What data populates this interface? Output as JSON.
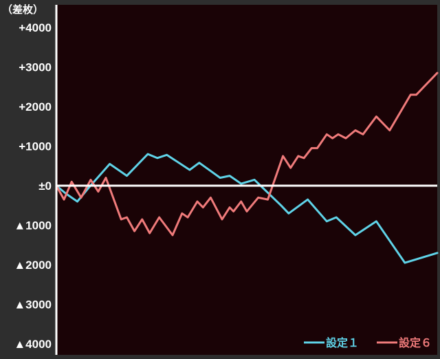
{
  "chart_data": {
    "type": "line",
    "title": "",
    "unit_label": "（差枚）",
    "xlabel": "",
    "ylabel": "",
    "ylim": [
      -4000,
      4000
    ],
    "yticks": [
      {
        "value": 4000,
        "label": "+4000"
      },
      {
        "value": 3000,
        "label": "+3000"
      },
      {
        "value": 2000,
        "label": "+2000"
      },
      {
        "value": 1000,
        "label": "+1000"
      },
      {
        "value": 0,
        "label": "±0"
      },
      {
        "value": -1000,
        "label": "▲1000"
      },
      {
        "value": -2000,
        "label": "▲2000"
      },
      {
        "value": -3000,
        "label": "▲3000"
      },
      {
        "value": -4000,
        "label": "▲4000"
      }
    ],
    "xlim": [
      0,
      100
    ],
    "grid": false,
    "legend_position": "bottom-right",
    "colors": {
      "background": "#1a0306",
      "frame": "#2e2e2e",
      "axis": "#ffffff",
      "zero_line": "#ffffff"
    },
    "series": [
      {
        "name": "設定１",
        "color": "#5fd3e8",
        "points": [
          [
            0,
            0
          ],
          [
            2.5,
            -200
          ],
          [
            5.5,
            -400
          ],
          [
            8.5,
            -50
          ],
          [
            14,
            550
          ],
          [
            18.5,
            250
          ],
          [
            24,
            800
          ],
          [
            26.5,
            700
          ],
          [
            29,
            780
          ],
          [
            35,
            400
          ],
          [
            37.5,
            580
          ],
          [
            43,
            200
          ],
          [
            45.5,
            250
          ],
          [
            48.5,
            50
          ],
          [
            52,
            150
          ],
          [
            59,
            -500
          ],
          [
            61,
            -700
          ],
          [
            66,
            -350
          ],
          [
            71,
            -900
          ],
          [
            73.5,
            -800
          ],
          [
            78.5,
            -1250
          ],
          [
            84,
            -900
          ],
          [
            91.5,
            -1950
          ],
          [
            100,
            -1700
          ]
        ]
      },
      {
        "name": "設定６",
        "color": "#f07b7b",
        "points": [
          [
            0,
            0
          ],
          [
            2,
            -350
          ],
          [
            4,
            100
          ],
          [
            6.5,
            -300
          ],
          [
            9,
            150
          ],
          [
            11,
            -150
          ],
          [
            13,
            200
          ],
          [
            17,
            -850
          ],
          [
            18.5,
            -800
          ],
          [
            20.5,
            -1150
          ],
          [
            22.5,
            -850
          ],
          [
            24.5,
            -1200
          ],
          [
            27,
            -800
          ],
          [
            30.5,
            -1250
          ],
          [
            33,
            -700
          ],
          [
            34.5,
            -800
          ],
          [
            37,
            -400
          ],
          [
            38.5,
            -550
          ],
          [
            40.5,
            -300
          ],
          [
            43.5,
            -850
          ],
          [
            45.5,
            -550
          ],
          [
            46.5,
            -650
          ],
          [
            48.5,
            -400
          ],
          [
            50,
            -650
          ],
          [
            53,
            -300
          ],
          [
            55.5,
            -350
          ],
          [
            59.5,
            750
          ],
          [
            61.5,
            450
          ],
          [
            63.5,
            750
          ],
          [
            65,
            700
          ],
          [
            67,
            950
          ],
          [
            68.5,
            950
          ],
          [
            71,
            1300
          ],
          [
            72.5,
            1200
          ],
          [
            74,
            1300
          ],
          [
            76,
            1200
          ],
          [
            78.5,
            1400
          ],
          [
            80.5,
            1300
          ],
          [
            84,
            1750
          ],
          [
            87.5,
            1400
          ],
          [
            93,
            2300
          ],
          [
            94.5,
            2300
          ],
          [
            96,
            2450
          ],
          [
            100,
            2850
          ]
        ]
      }
    ]
  }
}
